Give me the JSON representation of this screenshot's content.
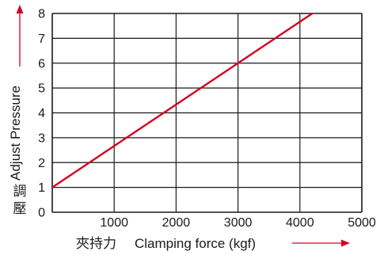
{
  "chart_data": {
    "type": "line",
    "title": "",
    "xlabel": "Clamping force (kgf)",
    "xlabel_cjk": "夾持力",
    "ylabel": "Adjust Pressure",
    "ylabel_cjk": "調壓",
    "xlim": [
      0,
      5000
    ],
    "ylim": [
      0,
      8
    ],
    "xticks": [
      1000,
      2000,
      3000,
      4000,
      5000
    ],
    "yticks": [
      0,
      1,
      2,
      3,
      4,
      5,
      6,
      7,
      8
    ],
    "grid": true,
    "legend": "none",
    "series": [
      {
        "color": "#d7001f",
        "x": [
          0,
          4200
        ],
        "y": [
          1,
          8
        ]
      }
    ]
  },
  "colors": {
    "grid": "#1a1a1a",
    "arrow": "#d7001f",
    "line": "#d7001f"
  }
}
